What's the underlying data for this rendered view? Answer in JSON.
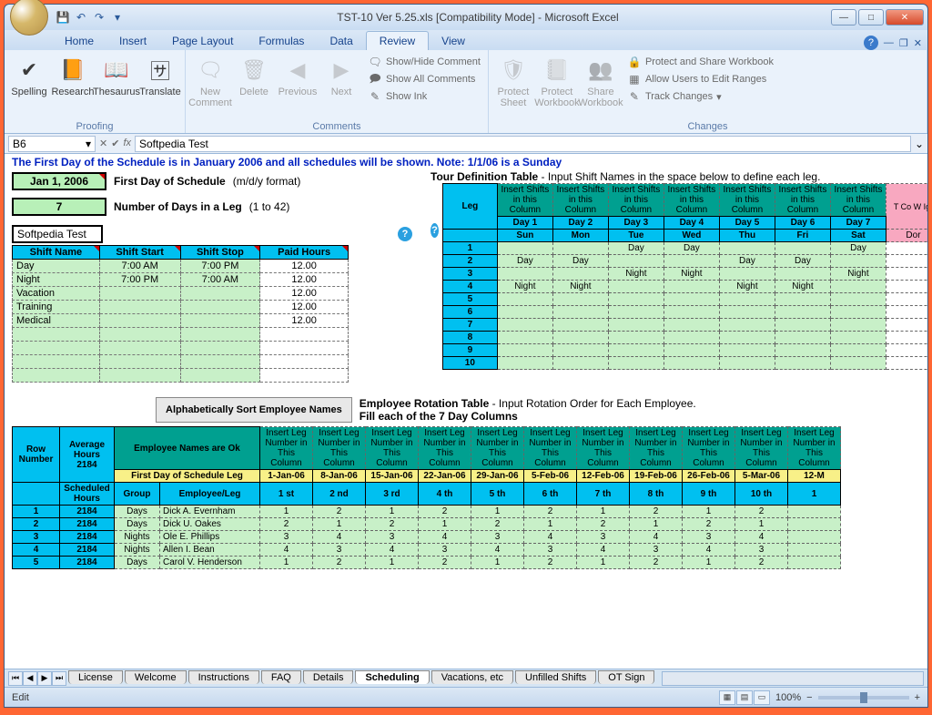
{
  "window": {
    "title": "TST-10 Ver 5.25.xls  [Compatibility Mode] - Microsoft Excel"
  },
  "tabs": [
    "Home",
    "Insert",
    "Page Layout",
    "Formulas",
    "Data",
    "Review",
    "View"
  ],
  "active_tab": "Review",
  "ribbon": {
    "proofing": {
      "label": "Proofing",
      "items": [
        "Spelling",
        "Research",
        "Thesaurus",
        "Translate"
      ]
    },
    "comments": {
      "label": "Comments",
      "big": [
        "New Comment",
        "Delete",
        "Previous",
        "Next"
      ],
      "small": [
        "Show/Hide Comment",
        "Show All Comments",
        "Show Ink"
      ]
    },
    "changes": {
      "label": "Changes",
      "big": [
        "Protect Sheet",
        "Protect Workbook",
        "Share Workbook"
      ],
      "small": [
        "Protect and Share Workbook",
        "Allow Users to Edit Ranges",
        "Track Changes"
      ]
    }
  },
  "formula_bar": {
    "name_box": "B6",
    "fx": "Softpedia Test"
  },
  "notice": "The First Day of the Schedule is in January 2006 and all schedules will be shown. Note: 1/1/06 is a Sunday",
  "first_day": {
    "value": "Jan 1, 2006",
    "label": "First Day of Schedule",
    "hint": "(m/d/y format)"
  },
  "days_leg": {
    "value": "7",
    "label": "Number of Days in a Leg",
    "hint": "(1 to 42)"
  },
  "test_name": "Softpedia Test",
  "shift_table": {
    "headers": [
      "Shift Name",
      "Shift Start",
      "Shift Stop",
      "Paid Hours"
    ],
    "rows": [
      [
        "Day",
        "7:00 AM",
        "7:00 PM",
        "12.00"
      ],
      [
        "Night",
        "7:00 PM",
        "7:00 AM",
        "12.00"
      ],
      [
        "Vacation",
        "",
        "",
        "12.00"
      ],
      [
        "Training",
        "",
        "",
        "12.00"
      ],
      [
        "Medical",
        "",
        "",
        "12.00"
      ]
    ],
    "blank_rows": 4
  },
  "tour": {
    "title": "Tour Definition Table",
    "title_hint": " - Input Shift Names in the space below to define each leg.",
    "insert_label": "Insert Shifts in this Column",
    "days": [
      "Day 1",
      "Day 2",
      "Day 3",
      "Day 4",
      "Day 5",
      "Day 6",
      "Day 7"
    ],
    "weekdays": [
      "Sun",
      "Mon",
      "Tue",
      "Wed",
      "Thu",
      "Fri",
      "Sat"
    ],
    "extra_col": "T Co W Igr",
    "leg_label": "Leg",
    "dont": "Dor",
    "rows": [
      [
        "",
        "",
        "Day",
        "Day",
        "",
        "",
        "Day"
      ],
      [
        "Day",
        "Day",
        "",
        "",
        "Day",
        "Day",
        ""
      ],
      [
        "",
        "",
        "Night",
        "Night",
        "",
        "",
        "Night"
      ],
      [
        "Night",
        "Night",
        "",
        "",
        "Night",
        "Night",
        ""
      ],
      [
        "",
        "",
        "",
        "",
        "",
        "",
        ""
      ],
      [
        "",
        "",
        "",
        "",
        "",
        "",
        ""
      ],
      [
        "",
        "",
        "",
        "",
        "",
        "",
        ""
      ],
      [
        "",
        "",
        "",
        "",
        "",
        "",
        ""
      ],
      [
        "",
        "",
        "",
        "",
        "",
        "",
        ""
      ],
      [
        "",
        "",
        "",
        "",
        "",
        "",
        ""
      ]
    ]
  },
  "sort_btn": "Alphabetically Sort Employee Names",
  "emp_rotation": {
    "title": "Employee Rotation Table",
    "hint": " - Input Rotation Order for Each Employee.",
    "fill": "Fill each of the 7 Day Columns"
  },
  "avg_hours": {
    "label": "Average Hours",
    "value": "2184"
  },
  "emp_ok": "Employee Names are Ok",
  "insert_leg": "Insert Leg Number in This Column",
  "leg_dates": [
    "1-Jan-06",
    "8-Jan-06",
    "15-Jan-06",
    "22-Jan-06",
    "29-Jan-06",
    "5-Feb-06",
    "12-Feb-06",
    "19-Feb-06",
    "26-Feb-06",
    "5-Mar-06",
    "12-M"
  ],
  "leg_ord": [
    "1 st",
    "2 nd",
    "3 rd",
    "4 th",
    "5 th",
    "6 th",
    "7 th",
    "8 th",
    "9 th",
    "10 th",
    "1"
  ],
  "emp_headers": {
    "row": "Row Number",
    "sched": "Scheduled Hours",
    "fdleg": "First Day of Schedule Leg",
    "group": "Group",
    "empleg": "Employee/Leg"
  },
  "emp_rows": [
    {
      "n": "1",
      "h": "2184",
      "g": "Days",
      "e": "Dick A. Evernham",
      "v": [
        "1",
        "2",
        "1",
        "2",
        "1",
        "2",
        "1",
        "2",
        "1",
        "2"
      ]
    },
    {
      "n": "2",
      "h": "2184",
      "g": "Days",
      "e": "Dick U. Oakes",
      "v": [
        "2",
        "1",
        "2",
        "1",
        "2",
        "1",
        "2",
        "1",
        "2",
        "1"
      ]
    },
    {
      "n": "3",
      "h": "2184",
      "g": "Nights",
      "e": "Ole E. Phillips",
      "v": [
        "3",
        "4",
        "3",
        "4",
        "3",
        "4",
        "3",
        "4",
        "3",
        "4"
      ]
    },
    {
      "n": "4",
      "h": "2184",
      "g": "Nights",
      "e": "Allen I. Bean",
      "v": [
        "4",
        "3",
        "4",
        "3",
        "4",
        "3",
        "4",
        "3",
        "4",
        "3"
      ]
    },
    {
      "n": "5",
      "h": "2184",
      "g": "Days",
      "e": "Carol V. Henderson",
      "v": [
        "1",
        "2",
        "1",
        "2",
        "1",
        "2",
        "1",
        "2",
        "1",
        "2"
      ]
    }
  ],
  "sheet_tabs": [
    "License",
    "Welcome",
    "Instructions",
    "FAQ",
    "Details",
    "Scheduling",
    "Vacations, etc",
    "Unfilled Shifts",
    "OT Sign"
  ],
  "active_sheet": "Scheduling",
  "status": {
    "mode": "Edit",
    "zoom": "100%"
  },
  "colors": {
    "cyan": "#00c0f0",
    "teal": "#00a090",
    "green": "#c8f0c8",
    "pink": "#f8a8c0",
    "yellow": "#f8f088",
    "bg_green": "#b8f0b8"
  }
}
